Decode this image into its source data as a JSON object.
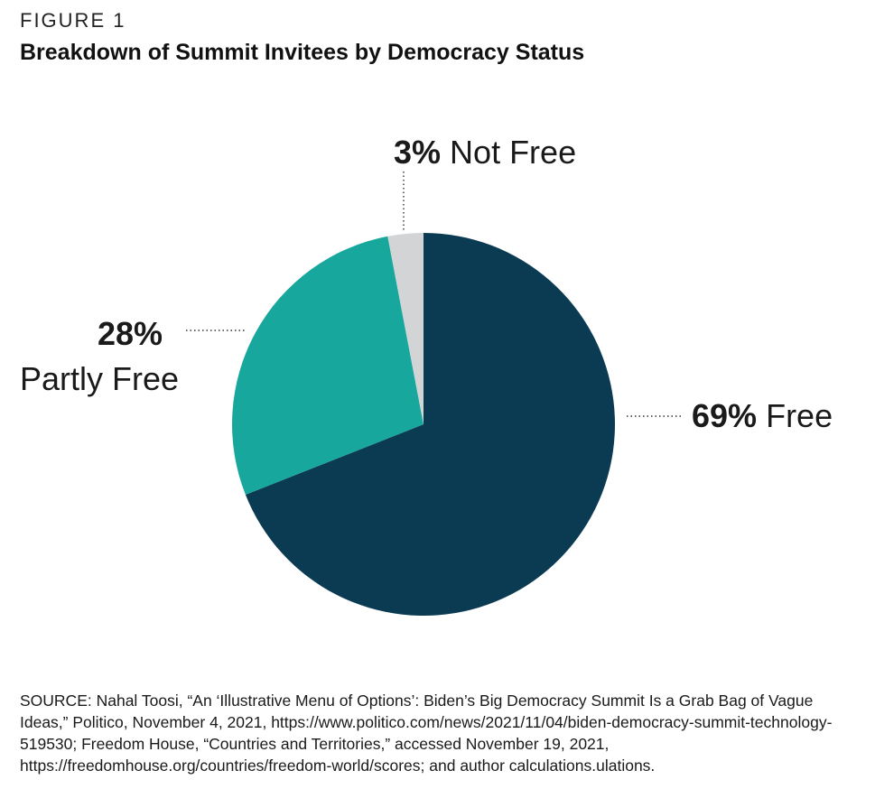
{
  "figure_label": "FIGURE 1",
  "title": "Breakdown of Summit Invitees by Democracy Status",
  "source": "SOURCE: Nahal Toosi, “An ‘Illustrative Menu of Options’: Biden’s Big Democracy Summit Is a Grab Bag of Vague Ideas,” Politico, November 4, 2021, https://www.politico.com/news/2021/11/04/biden-democracy-summit-technology-519530; Freedom House, “Countries and Territories,” accessed November 19, 2021, https://freedomhouse.org/countries/freedom-world/scores; and author calculations.ulations.",
  "chart_data": {
    "type": "pie",
    "title": "Breakdown of Summit Invitees by Democracy Status",
    "slices": [
      {
        "name": "Free",
        "value": 69,
        "pct_label": "69%",
        "color": "#0b3b52"
      },
      {
        "name": "Partly Free",
        "value": 28,
        "pct_label": "28%",
        "color": "#17a79c"
      },
      {
        "name": "Not Free",
        "value": 3,
        "pct_label": "3%",
        "color": "#d3d4d6"
      }
    ],
    "start_angle": "12 o'clock",
    "direction": "clockwise"
  }
}
